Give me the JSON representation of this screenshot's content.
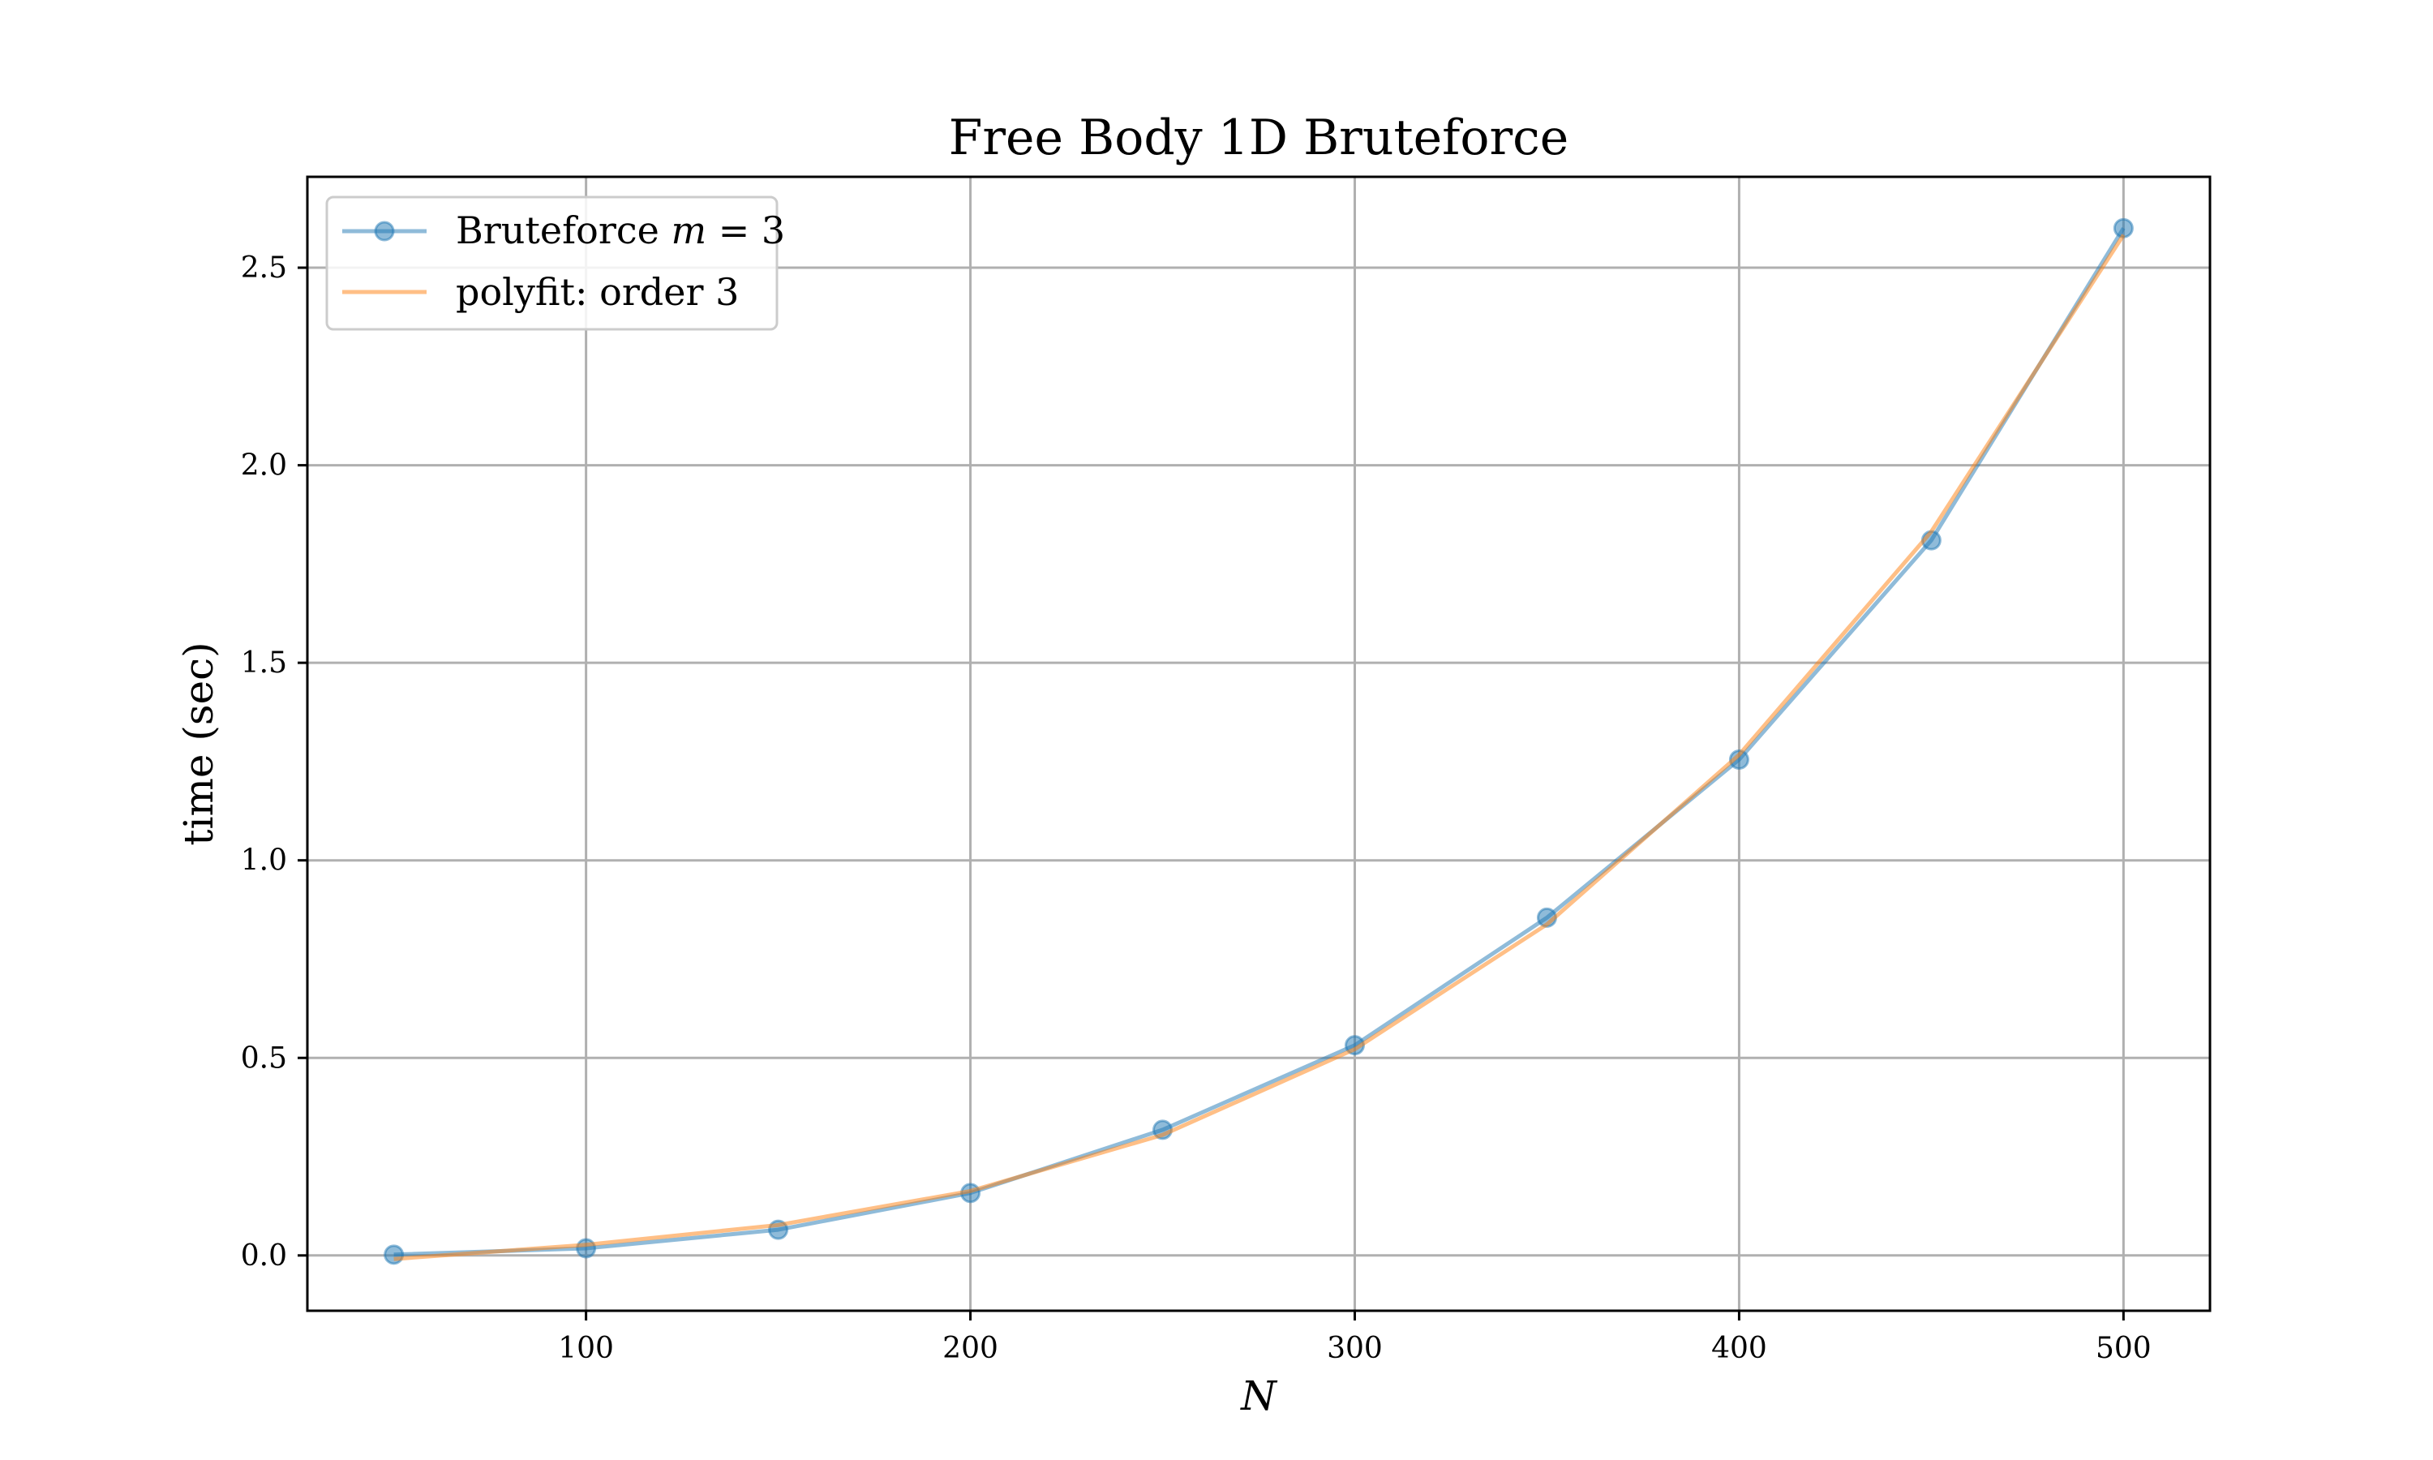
{
  "chart_data": {
    "type": "line",
    "title": "Free Body 1D Bruteforce",
    "xlabel": "N",
    "ylabel": "time (sec)",
    "xlim": [
      27.5,
      522.5
    ],
    "ylim": [
      -0.14,
      2.73
    ],
    "xticks": [
      100,
      200,
      300,
      400,
      500
    ],
    "yticks": [
      0.0,
      0.5,
      1.0,
      1.5,
      2.0,
      2.5
    ],
    "xtick_labels": [
      "100",
      "200",
      "300",
      "400",
      "500"
    ],
    "ytick_labels": [
      "0.0",
      "0.5",
      "1.0",
      "1.5",
      "2.0",
      "2.5"
    ],
    "grid": true,
    "legend_position": "top-left",
    "x": [
      50,
      100,
      150,
      200,
      250,
      300,
      350,
      400,
      450,
      500
    ],
    "series": [
      {
        "name": "Bruteforce m = 3",
        "name_parts": [
          "Bruteforce ",
          "m",
          " = 3"
        ],
        "values": [
          0.002,
          0.018,
          0.065,
          0.158,
          0.318,
          0.532,
          0.855,
          1.255,
          1.81,
          2.6
        ],
        "color": "#1f77b4",
        "marker": "circle"
      },
      {
        "name": "polyfit: order 3",
        "values": [
          -0.009,
          0.027,
          0.077,
          0.163,
          0.305,
          0.522,
          0.838,
          1.267,
          1.832,
          2.583
        ],
        "color": "#ff7f0e",
        "marker": "none"
      }
    ]
  }
}
